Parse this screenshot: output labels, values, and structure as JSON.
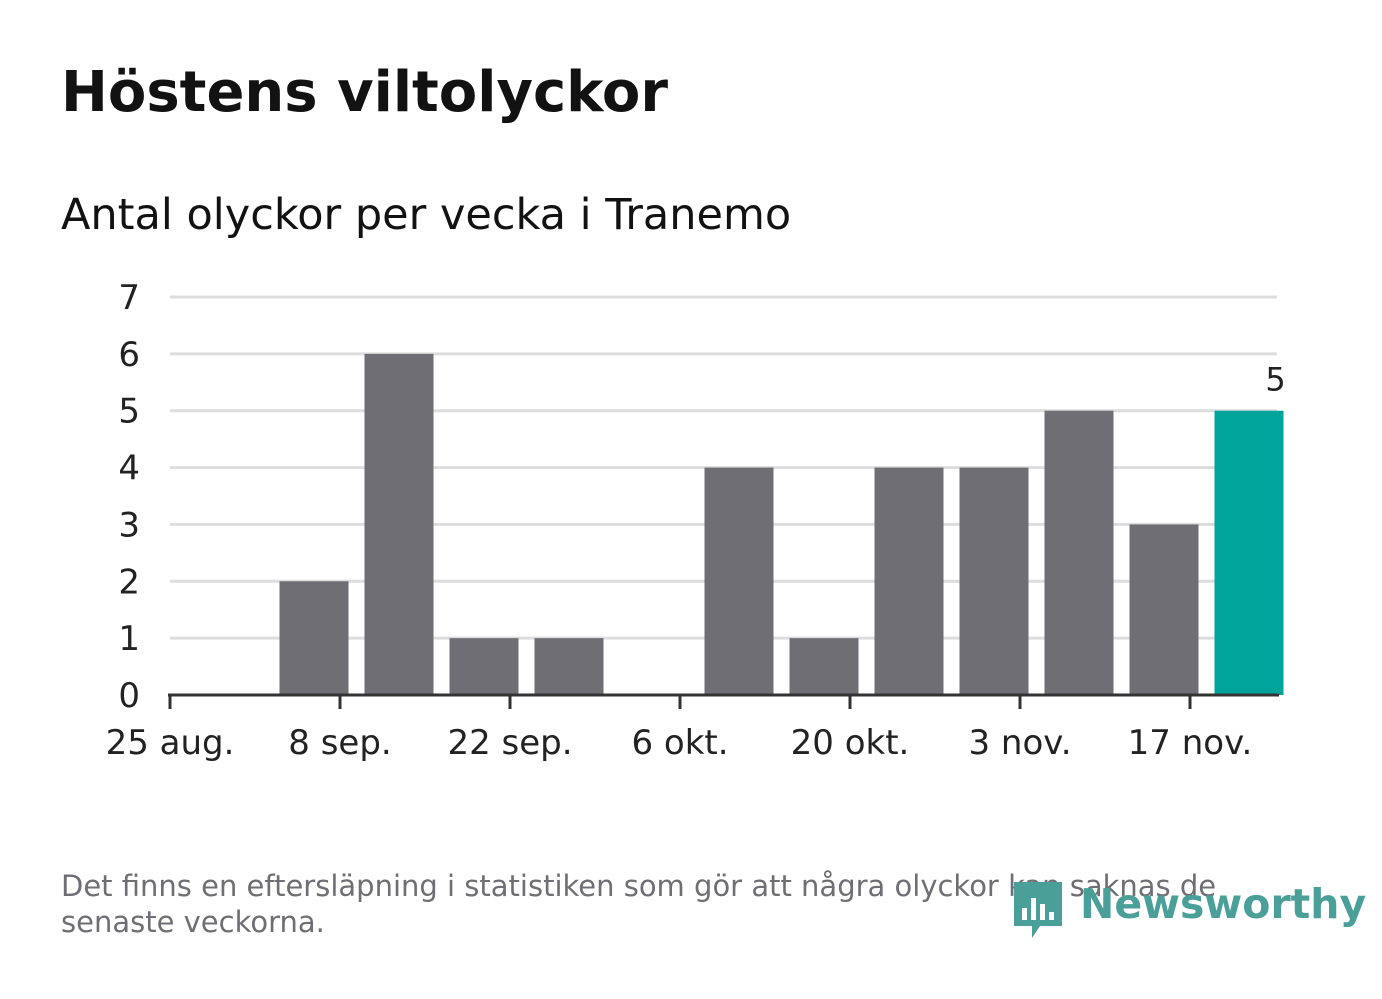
{
  "title": "Höstens viltolyckor",
  "subtitle": "Antal olyckor per vecka i Tranemo",
  "footnote": "Det finns en eftersläpning i statistiken som gör att några olyckor kan saknas de senaste veckorna.",
  "logo": {
    "text": "Newsworthy",
    "icon": "bar-chart-bubble-icon"
  },
  "colors": {
    "bar": "#6f6e74",
    "highlight": "#00a49a",
    "grid": "#dddddd",
    "axis": "#333333"
  },
  "chart_data": {
    "type": "bar",
    "title": "Höstens viltolyckor",
    "subtitle": "Antal olyckor per vecka i Tranemo",
    "x": [
      "2020-08-25",
      "2020-09-01",
      "2020-09-08",
      "2020-09-15",
      "2020-09-22",
      "2020-09-29",
      "2020-10-06",
      "2020-10-13",
      "2020-10-20",
      "2020-10-27",
      "2020-11-03",
      "2020-11-10",
      "2020-11-17"
    ],
    "values": [
      0,
      2,
      6,
      1,
      1,
      0,
      4,
      1,
      4,
      4,
      5,
      3,
      5
    ],
    "highlight_index": 12,
    "highlight_label": "5",
    "x_ticks": [
      {
        "x": "2020-08-25",
        "label": "25 aug."
      },
      {
        "x": "2020-09-08",
        "label": "8 sep."
      },
      {
        "x": "2020-09-22",
        "label": "22 sep."
      },
      {
        "x": "2020-10-06",
        "label": "6 okt."
      },
      {
        "x": "2020-10-20",
        "label": "20 okt."
      },
      {
        "x": "2020-11-03",
        "label": "3 nov."
      },
      {
        "x": "2020-11-17",
        "label": "17 nov."
      }
    ],
    "y_ticks": [
      0,
      1,
      2,
      3,
      4,
      5,
      6,
      7
    ],
    "ylim": [
      0,
      7
    ],
    "grid": true,
    "xlabel": "",
    "ylabel": ""
  }
}
